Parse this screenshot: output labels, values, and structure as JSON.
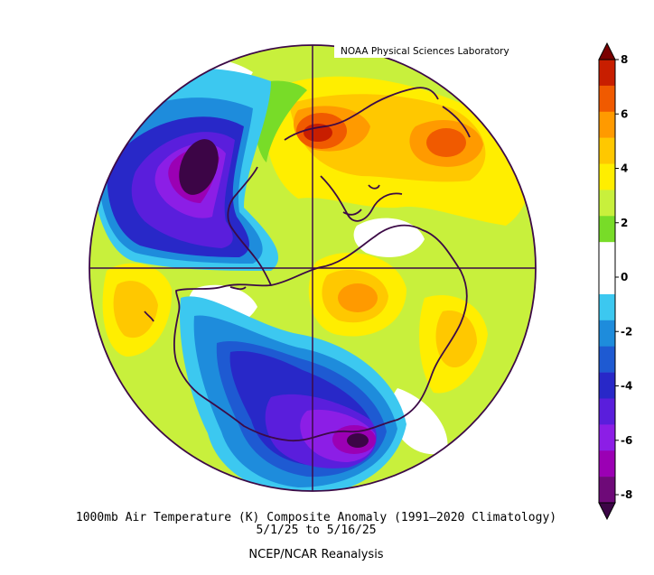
{
  "credit": "NOAA Physical Sciences Laboratory",
  "caption": {
    "title": "1000mb Air Temperature (K) Composite Anomaly (1991–2020 Climatology)",
    "dates": "5/1/25  to 5/16/25",
    "source": "NCEP/NCAR Reanalysis"
  },
  "colorbar": {
    "labels": [
      "8",
      "6",
      "4",
      "2",
      "0",
      "-2",
      "-4",
      "-6",
      "-8"
    ],
    "colors": [
      "#7a0000",
      "#c81e00",
      "#f05a00",
      "#ff9a00",
      "#ffc800",
      "#ffee00",
      "#c8f03c",
      "#78dc28",
      "#ffffff",
      "#ffffff",
      "#3cc8f0",
      "#1e8cdc",
      "#1e5ad2",
      "#2828c8",
      "#5a1edc",
      "#8c1ee6",
      "#9b00b4",
      "#6e0a78",
      "#3c0546"
    ]
  },
  "map": {
    "projection": "polar-stereographic-south",
    "background_color": "#c8f03c",
    "outline_color": "#3c0a46"
  }
}
